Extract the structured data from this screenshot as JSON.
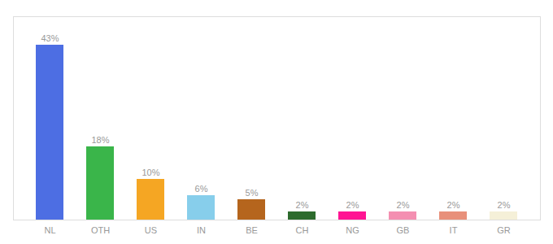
{
  "chart_data": {
    "type": "bar",
    "categories": [
      "NL",
      "OTH",
      "US",
      "IN",
      "BE",
      "CH",
      "NG",
      "GB",
      "IT",
      "GR"
    ],
    "values": [
      43,
      18,
      10,
      6,
      5,
      2,
      2,
      2,
      2,
      2
    ],
    "value_labels": [
      "43%",
      "18%",
      "10%",
      "6%",
      "5%",
      "2%",
      "2%",
      "2%",
      "2%",
      "2%"
    ],
    "colors": [
      "#4d6ee3",
      "#3ab54a",
      "#f5a623",
      "#87ceeb",
      "#b5651d",
      "#2d6b2d",
      "#ff1493",
      "#f48fb1",
      "#e8907a",
      "#f5f0d8"
    ],
    "ylim": [
      0,
      50
    ],
    "data_labels": true,
    "tick_labels": "x"
  }
}
